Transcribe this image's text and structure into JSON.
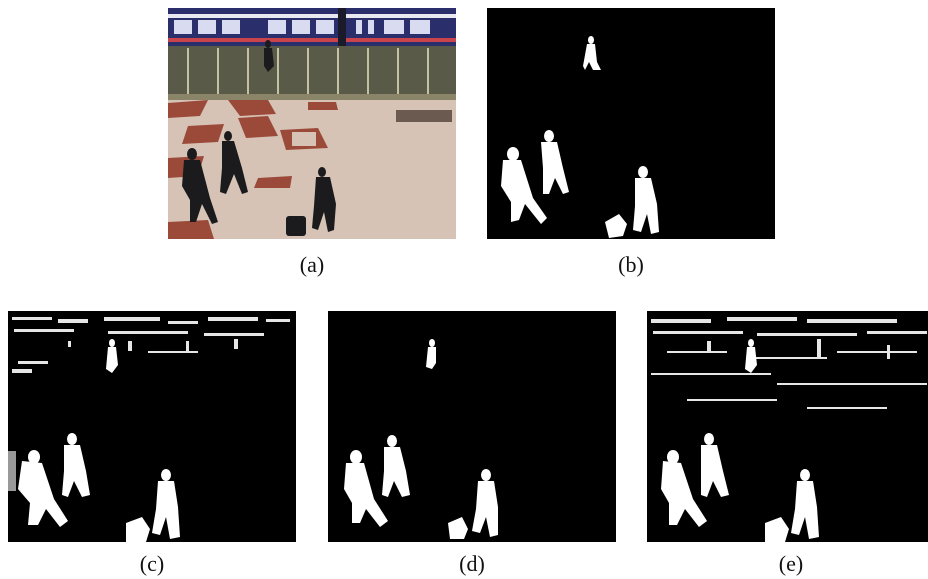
{
  "figure": {
    "panels": [
      {
        "id": "a",
        "caption": "(a)",
        "kind": "original-frame"
      },
      {
        "id": "b",
        "caption": "(b)",
        "kind": "ground-truth-mask"
      },
      {
        "id": "c",
        "caption": "(c)",
        "kind": "foreground-mask-noisy"
      },
      {
        "id": "d",
        "caption": "(d)",
        "kind": "foreground-mask-clean"
      },
      {
        "id": "e",
        "caption": "(e)",
        "kind": "foreground-mask-noisy"
      }
    ],
    "colors": {
      "mask_background": "#000000",
      "mask_foreground": "#ffffff",
      "floor": "#d8c6bb",
      "floor_tile": "#9b4a3a",
      "train": "#2a2f6b",
      "page_background": "#ffffff"
    }
  }
}
